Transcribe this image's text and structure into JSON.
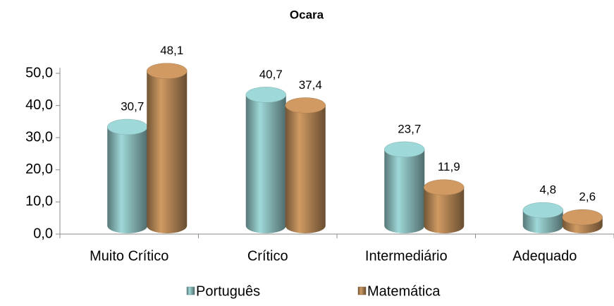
{
  "chart_data": {
    "type": "bar",
    "title": "Ocara",
    "categories": [
      "Muito Crítico",
      "Crítico",
      "Intermediário",
      "Adequado"
    ],
    "series": [
      {
        "name": "Português",
        "color": "#9fd8d8",
        "values": [
          30.7,
          40.7,
          23.7,
          4.8
        ],
        "value_labels": [
          "30,7",
          "40,7",
          "23,7",
          "4,8"
        ]
      },
      {
        "name": "Matemática",
        "color": "#d09a62",
        "values": [
          48.1,
          37.4,
          11.9,
          2.6
        ],
        "value_labels": [
          "48,1",
          "37,4",
          "11,9",
          "2,6"
        ]
      }
    ],
    "ylim": [
      0,
      50
    ],
    "yticks": [
      {
        "value": 0,
        "label": "0,0"
      },
      {
        "value": 10,
        "label": "10,0"
      },
      {
        "value": 20,
        "label": "20,0"
      },
      {
        "value": 30,
        "label": "30,0"
      },
      {
        "value": 40,
        "label": "40,0"
      },
      {
        "value": 50,
        "label": "50,0"
      }
    ],
    "legend": "bottom"
  }
}
